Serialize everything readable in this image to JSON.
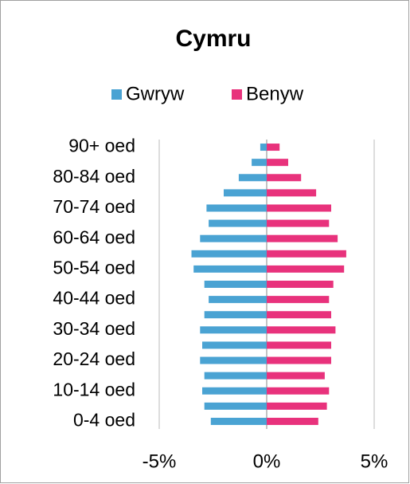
{
  "chart_data": {
    "type": "bar",
    "orientation": "horizontal",
    "title": "Cymru",
    "categories": [
      "0-4 oed",
      null,
      "10-14 oed",
      null,
      "20-24 oed",
      null,
      "30-34 oed",
      null,
      "40-44 oed",
      null,
      "50-54 oed",
      null,
      "60-64 oed",
      null,
      "70-74 oed",
      null,
      "80-84 oed",
      null,
      "90+ oed"
    ],
    "series": [
      {
        "name": "Gwryw",
        "color": "#4aa3d3",
        "values": [
          -2.6,
          -2.9,
          -3.0,
          -2.9,
          -3.1,
          -3.0,
          -3.1,
          -2.9,
          -2.7,
          -2.9,
          -3.4,
          -3.5,
          -3.1,
          -2.7,
          -2.8,
          -2.0,
          -1.3,
          -0.7,
          -0.3
        ]
      },
      {
        "name": "Benyw",
        "color": "#e8327c",
        "values": [
          2.4,
          2.8,
          2.9,
          2.7,
          3.0,
          3.0,
          3.2,
          3.0,
          2.9,
          3.1,
          3.6,
          3.7,
          3.3,
          2.9,
          3.0,
          2.3,
          1.6,
          1.0,
          0.6
        ]
      }
    ],
    "xlim": [
      -5,
      5
    ],
    "xticks": [
      {
        "value": -5,
        "label": "-5%"
      },
      {
        "value": 0,
        "label": "0%"
      },
      {
        "value": 5,
        "label": "5%"
      }
    ],
    "grid": true,
    "legend": "top"
  }
}
